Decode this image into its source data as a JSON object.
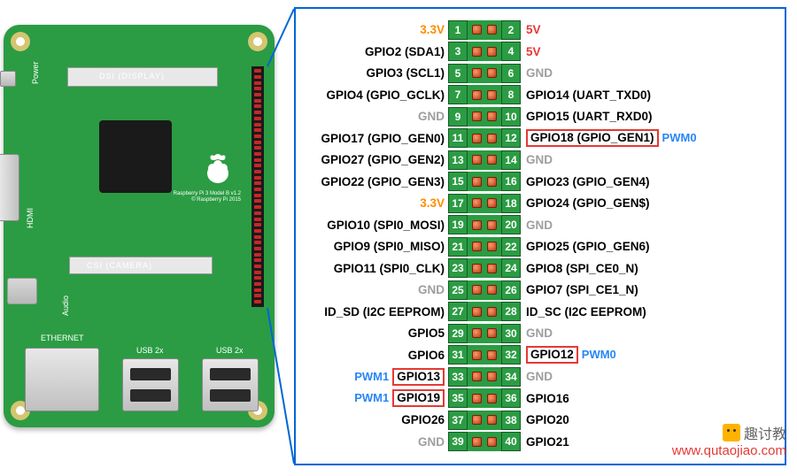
{
  "board": {
    "dsi_label": "DSI (DISPLAY)",
    "power_label": "Power",
    "hdmi_label": "HDMI",
    "csi_label": "CSI (CAMERA)",
    "audio_label": "Audio",
    "eth_label": "ETHERNET",
    "usb_label": "USB 2x",
    "logo_text_1": "Raspberry Pi 3 Model B v1.2",
    "logo_text_2": "© Raspberry Pi 2015"
  },
  "colors": {
    "board_green": "#2b9c43",
    "pin_red": "#b33a1a",
    "frame_blue": "#0066d6",
    "text_orange": "#ff8c00",
    "text_red": "#e53935",
    "text_gray": "#9e9e9e",
    "text_blue": "#2986f5"
  },
  "pins": [
    {
      "l": "3.3V",
      "lc": "orange",
      "ln": 1,
      "rn": 2,
      "r": "5V",
      "rc": "red"
    },
    {
      "l": "GPIO2 (SDA1)",
      "lc": "black",
      "ln": 3,
      "rn": 4,
      "r": "5V",
      "rc": "red"
    },
    {
      "l": "GPIO3 (SCL1)",
      "lc": "black",
      "ln": 5,
      "rn": 6,
      "r": "GND",
      "rc": "gray"
    },
    {
      "l": "GPIO4 (GPIO_GCLK)",
      "lc": "black",
      "ln": 7,
      "rn": 8,
      "r": "GPIO14 (UART_TXD0)",
      "rc": "black"
    },
    {
      "l": "GND",
      "lc": "gray",
      "ln": 9,
      "rn": 10,
      "r": "GPIO15 (UART_RXD0)",
      "rc": "black"
    },
    {
      "l": "GPIO17 (GPIO_GEN0)",
      "lc": "black",
      "ln": 11,
      "rn": 12,
      "r": "GPIO18 (GPIO_GEN1)",
      "rc": "black",
      "rbox": true,
      "rpwm": "PWM0"
    },
    {
      "l": "GPIO27 (GPIO_GEN2)",
      "lc": "black",
      "ln": 13,
      "rn": 14,
      "r": "GND",
      "rc": "gray"
    },
    {
      "l": "GPIO22 (GPIO_GEN3)",
      "lc": "black",
      "ln": 15,
      "rn": 16,
      "r": "GPIO23 (GPIO_GEN4)",
      "rc": "black"
    },
    {
      "l": "3.3V",
      "lc": "orange",
      "ln": 17,
      "rn": 18,
      "r": "GPIO24 (GPIO_GEN$)",
      "rc": "black"
    },
    {
      "l": "GPIO10 (SPI0_MOSI)",
      "lc": "black",
      "ln": 19,
      "rn": 20,
      "r": "GND",
      "rc": "gray"
    },
    {
      "l": "GPIO9 (SPI0_MISO)",
      "lc": "black",
      "ln": 21,
      "rn": 22,
      "r": "GPIO25 (GPIO_GEN6)",
      "rc": "black"
    },
    {
      "l": "GPIO11 (SPI0_CLK)",
      "lc": "black",
      "ln": 23,
      "rn": 24,
      "r": "GPIO8 (SPI_CE0_N)",
      "rc": "black"
    },
    {
      "l": "GND",
      "lc": "gray",
      "ln": 25,
      "rn": 26,
      "r": "GPIO7 (SPI_CE1_N)",
      "rc": "black"
    },
    {
      "l": "ID_SD (I2C EEPROM)",
      "lc": "black",
      "ln": 27,
      "rn": 28,
      "r": "ID_SC (I2C EEPROM)",
      "rc": "black"
    },
    {
      "l": "GPIO5",
      "lc": "black",
      "ln": 29,
      "rn": 30,
      "r": "GND",
      "rc": "gray"
    },
    {
      "l": "GPIO6",
      "lc": "black",
      "ln": 31,
      "rn": 32,
      "r": "GPIO12",
      "rc": "black",
      "rbox": true,
      "rpwm": "PWM0"
    },
    {
      "l": "GPIO13",
      "lc": "black",
      "ln": 33,
      "rn": 34,
      "r": "GND",
      "rc": "gray",
      "lbox": true,
      "lpwm": "PWM1"
    },
    {
      "l": "GPIO19",
      "lc": "black",
      "ln": 35,
      "rn": 36,
      "r": "GPIO16",
      "rc": "black",
      "lbox": true,
      "lpwm": "PWM1"
    },
    {
      "l": "GPIO26",
      "lc": "black",
      "ln": 37,
      "rn": 38,
      "r": "GPIO20",
      "rc": "black"
    },
    {
      "l": "GND",
      "lc": "gray",
      "ln": 39,
      "rn": 40,
      "r": "GPIO21",
      "rc": "black"
    }
  ],
  "watermark": {
    "title": "趣讨教",
    "url": "www.qutaojiao.com"
  }
}
